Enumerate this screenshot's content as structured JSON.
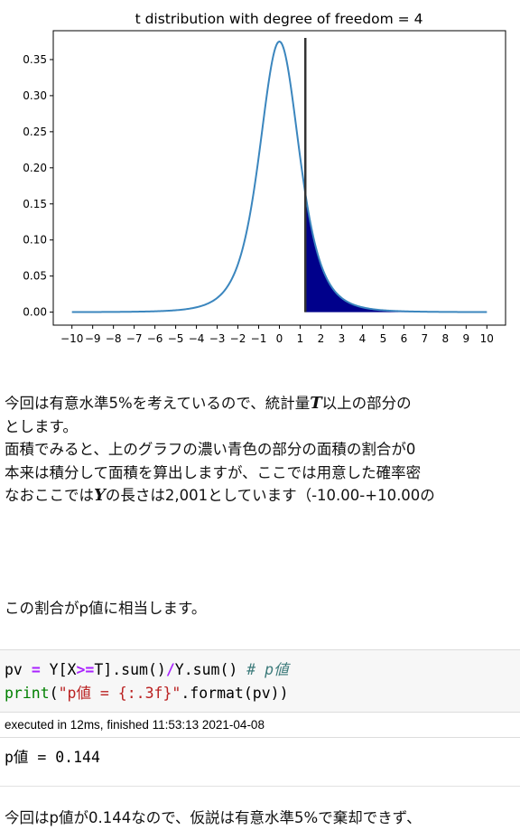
{
  "chart_data": {
    "type": "line",
    "title": "t distribution with degree of freedom = 4",
    "xlabel": "",
    "ylabel": "",
    "xlim": [
      -10.9,
      10.9
    ],
    "ylim": [
      -0.018,
      0.39
    ],
    "x_ticks": [
      "−10",
      "−9",
      "−8",
      "−7",
      "−6",
      "−5",
      "−4",
      "−3",
      "−2",
      "−1",
      "0",
      "1",
      "2",
      "3",
      "4",
      "5",
      "6",
      "7",
      "8",
      "9",
      "10"
    ],
    "x_tick_values": [
      -10,
      -9,
      -8,
      -7,
      -6,
      -5,
      -4,
      -3,
      -2,
      -1,
      0,
      1,
      2,
      3,
      4,
      5,
      6,
      7,
      8,
      9,
      10
    ],
    "y_ticks": [
      "0.00",
      "0.05",
      "0.10",
      "0.15",
      "0.20",
      "0.25",
      "0.30",
      "0.35"
    ],
    "y_tick_values": [
      0.0,
      0.05,
      0.1,
      0.15,
      0.2,
      0.25,
      0.3,
      0.35
    ],
    "degrees_of_freedom": 4,
    "x_range": [
      -10,
      10
    ],
    "statistic_T": 1.25,
    "vline_top": 0.38,
    "curve_color": "#3b86be",
    "fill_color": "#00008b",
    "vline_color": "#333333",
    "grid": false,
    "legend": "none"
  },
  "text": {
    "p1_a": "今回は有意水準5%を考えているので、統計量",
    "p1_var": "T",
    "p1_b": "以上の部分の",
    "p2": "とします。",
    "p3": "面積でみると、上のグラフの濃い青色の部分の面積の割合が0",
    "p4": "本来は積分して面積を算出しますが、ここでは用意した確率密",
    "p5_a": "なおここでは",
    "p5_var": "Y",
    "p5_b": "の長さは2,001としています（-10.00-+10.00の",
    "p6": "この割合がp値に相当します。",
    "p7": "今回はp値が0.144なので、仮説は有意水準5%で棄却できず、"
  },
  "code": {
    "l1_pv": "pv ",
    "l1_eq": "=",
    "l1_a": " Y[X",
    "l1_ge": ">=",
    "l1_b": "T].sum()",
    "l1_div": "/",
    "l1_c": "Y.sum() ",
    "l1_comment": "# p値",
    "l2_print": "print",
    "l2_open": "(",
    "l2_str": "\"p値 = {:.3f}\"",
    "l2_rest": ".format(pv))"
  },
  "exec_info": "executed in 12ms, finished 11:53:13 2021-04-08",
  "output": "p値 = 0.144"
}
